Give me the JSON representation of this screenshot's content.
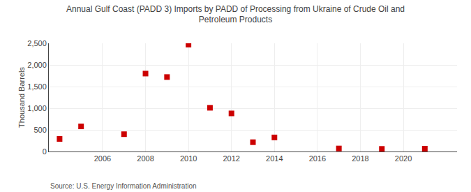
{
  "chart_data": {
    "type": "scatter",
    "title": "Annual Gulf Coast (PADD 3) Imports by PADD of Processing from Ukraine of Crude Oil and\nPetroleum Products",
    "ylabel": "Thousand Barrels",
    "source": "Source: U.S. Energy Information Administration",
    "x": [
      2004,
      2005,
      2007,
      2008,
      2009,
      2010,
      2011,
      2012,
      2013,
      2014,
      2017,
      2019,
      2021
    ],
    "values": [
      290,
      580,
      400,
      1800,
      1720,
      2470,
      1010,
      880,
      215,
      325,
      70,
      60,
      65
    ],
    "color": "#cc0000",
    "marker": "square",
    "xlim": [
      2003.5,
      2022.5
    ],
    "xticks": [
      2006,
      2008,
      2010,
      2012,
      2014,
      2016,
      2018,
      2020
    ],
    "ylim": [
      0,
      2500
    ],
    "yticks": [
      0,
      500,
      {
        "value": 1000,
        "label": "1,000"
      },
      {
        "value": 1500,
        "label": "1,500"
      },
      {
        "value": 2000,
        "label": "2,000"
      },
      {
        "value": 2500,
        "label": "2,500"
      }
    ],
    "grid": true
  }
}
